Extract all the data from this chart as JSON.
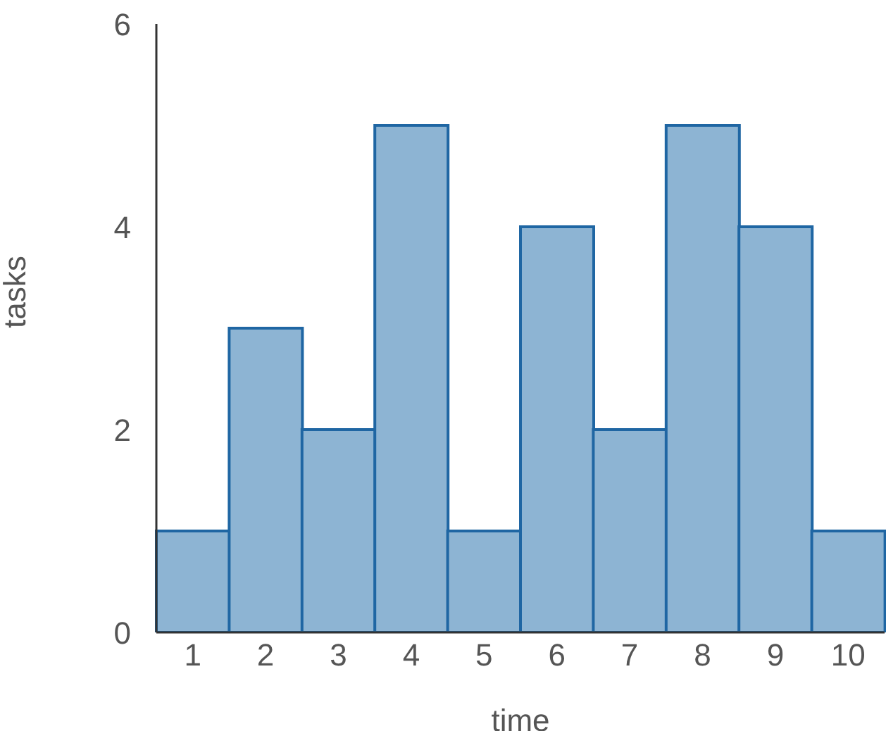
{
  "chart_data": {
    "type": "bar",
    "xlabel": "time",
    "ylabel": "tasks",
    "categories": [
      "1",
      "2",
      "3",
      "4",
      "5",
      "6",
      "7",
      "8",
      "9",
      "10"
    ],
    "values": [
      1,
      3,
      2,
      5,
      1,
      4,
      2,
      5,
      4,
      1
    ],
    "color": "#8db4d3",
    "ylim": [
      0,
      6
    ],
    "yticks": [
      0,
      2,
      4,
      6
    ],
    "grid": false,
    "legend": false
  }
}
